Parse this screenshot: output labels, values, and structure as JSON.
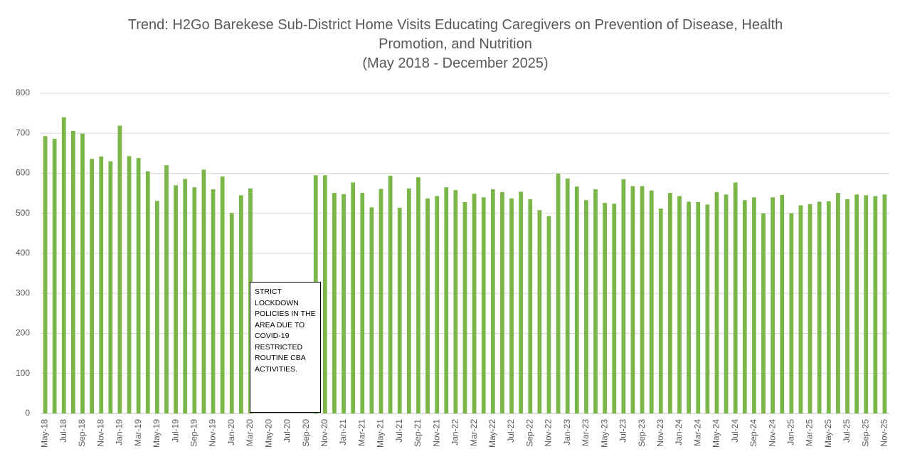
{
  "chart_data": {
    "type": "bar",
    "title": "Trend: H2Go Barekese Sub-District Home Visits Educating Caregivers on Prevention of Disease, Health Promotion, and Nutrition",
    "subtitle": "(May 2018 - December 2025)",
    "annotation": "STRICT LOCKDOWN POLICIES IN THE AREA DUE TO COVID-19 RESTRICTED ROUTINE CBA ACTIVITIES.",
    "categories": [
      "May-18",
      null,
      "Jul-18",
      null,
      "Sep-18",
      null,
      "Nov-18",
      null,
      "Jan-19",
      null,
      "Mar-19",
      null,
      "May-19",
      null,
      "Jul-19",
      null,
      "Sep-19",
      null,
      "Nov-19",
      null,
      "Jan-20",
      null,
      "Mar-20",
      null,
      "May-20",
      null,
      "Jul-20",
      null,
      "Sep-20",
      null,
      "Nov-20",
      null,
      "Jan-21",
      null,
      "Mar-21",
      null,
      "May-21",
      null,
      "Jul-21",
      null,
      "Sep-21",
      null,
      "Nov-21",
      null,
      "Jan-22",
      null,
      "Mar-22",
      null,
      "May-22",
      null,
      "Jul-22",
      null,
      "Sep-22",
      null,
      "Nov-22",
      null,
      "Jan-23",
      null,
      "Mar-23",
      null,
      "May-23",
      null,
      "Jul-23",
      null,
      "Sep-23",
      null,
      "Nov-23",
      null,
      "Jan-24",
      null,
      "Mar-24",
      null,
      "May-24",
      null,
      "Jul-24",
      null,
      "Sep-24",
      null,
      "Nov-24",
      null,
      "Jan-25",
      null,
      "Mar-25",
      null,
      "May-25",
      null,
      "Jul-25",
      null,
      "Sep-25",
      null,
      "Nov-25"
    ],
    "values": [
      693,
      686,
      740,
      706,
      699,
      636,
      642,
      630,
      719,
      643,
      638,
      605,
      531,
      620,
      570,
      586,
      565,
      609,
      560,
      592,
      501,
      545,
      562,
      null,
      null,
      null,
      null,
      null,
      null,
      595,
      595,
      551,
      548,
      577,
      551,
      515,
      561,
      594,
      514,
      562,
      590,
      537,
      543,
      565,
      558,
      528,
      549,
      540,
      560,
      553,
      537,
      554,
      535,
      508,
      493,
      599,
      587,
      567,
      533,
      560,
      526,
      524,
      585,
      568,
      568,
      557,
      512,
      551,
      543,
      529,
      528,
      522,
      553,
      547,
      577,
      533,
      540,
      500,
      540,
      546,
      500,
      520,
      523,
      529,
      530,
      551,
      535,
      547,
      545,
      543,
      547
    ],
    "color": "#7ab648",
    "ylim": [
      0,
      800
    ],
    "yticks": [
      0,
      100,
      200,
      300,
      400,
      500,
      600,
      700,
      800
    ],
    "grid": true
  }
}
